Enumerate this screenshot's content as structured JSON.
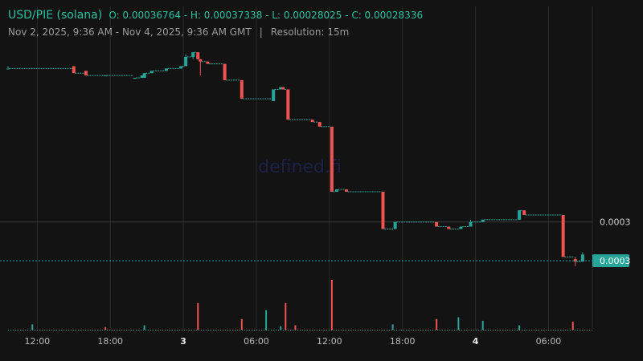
{
  "header": {
    "pair": "USD/PIE (solana)",
    "ohlc": "O: 0.00036764 - H: 0.00037338 - L: 0.00028025 - C: 0.00028336",
    "range": "Nov 2, 2025, 9:36 AM - Nov 4, 2025, 9:36 AM GMT",
    "separator": "|",
    "resolution": "Resolution: 15m"
  },
  "watermark": "defined.fi",
  "colors": {
    "up": "#26a69a",
    "down": "#ef5350",
    "background": "#131313",
    "grid": "#2a2a2a",
    "text": "#9a9a9a",
    "accent": "#25c3a2"
  },
  "chart_data": {
    "type": "candlestick",
    "x_ticks": [
      "12:00",
      "18:00",
      "3",
      "06:00",
      "12:00",
      "18:00",
      "4",
      "06:00"
    ],
    "x_tick_hours": [
      2.4,
      8.4,
      14.4,
      20.4,
      26.4,
      32.4,
      38.4,
      44.4
    ],
    "x_range_hours": [
      0,
      48
    ],
    "y_ticks": [
      0.0003
    ],
    "y_tick_labels": [
      "0.0003"
    ],
    "price_range": [
      0.00028025,
      0.00037338
    ],
    "current_price_label": "0.0003",
    "last_price": 0.00028336,
    "candles": [
      {
        "t": 0.0,
        "o": 0.000366,
        "h": 0.000367,
        "l": 0.000366,
        "c": 0.000366
      },
      {
        "t": 5.4,
        "o": 0.000367,
        "h": 0.000367,
        "l": 0.000364,
        "c": 0.000364
      },
      {
        "t": 6.4,
        "o": 0.000365,
        "h": 0.000365,
        "l": 0.000363,
        "c": 0.000363
      },
      {
        "t": 8.0,
        "o": 0.000363,
        "h": 0.000363,
        "l": 0.000363,
        "c": 0.000363
      },
      {
        "t": 10.4,
        "o": 0.000362,
        "h": 0.000362,
        "l": 0.000362,
        "c": 0.000362
      },
      {
        "t": 11.0,
        "o": 0.000362,
        "h": 0.000363,
        "l": 0.000362,
        "c": 0.000363
      },
      {
        "t": 11.2,
        "o": 0.000362,
        "h": 0.000364,
        "l": 0.000362,
        "c": 0.000364
      },
      {
        "t": 11.8,
        "o": 0.000364,
        "h": 0.000365,
        "l": 0.000364,
        "c": 0.000365
      },
      {
        "t": 13.0,
        "o": 0.000365,
        "h": 0.000366,
        "l": 0.000365,
        "c": 0.000366
      },
      {
        "t": 14.2,
        "o": 0.000366,
        "h": 0.000367,
        "l": 0.000366,
        "c": 0.000367
      },
      {
        "t": 14.6,
        "o": 0.000367,
        "h": 0.000372,
        "l": 0.000367,
        "c": 0.000371
      },
      {
        "t": 15.2,
        "o": 0.000371,
        "h": 0.000373,
        "l": 0.00037,
        "c": 0.000373
      },
      {
        "t": 15.6,
        "o": 0.000373,
        "h": 0.000373,
        "l": 0.00037,
        "c": 0.00037
      },
      {
        "t": 15.8,
        "o": 0.00037,
        "h": 0.00037,
        "l": 0.000363,
        "c": 0.000369
      },
      {
        "t": 16.4,
        "o": 0.000369,
        "h": 0.000369,
        "l": 0.000368,
        "c": 0.000368
      },
      {
        "t": 17.8,
        "o": 0.000368,
        "h": 0.000368,
        "l": 0.000361,
        "c": 0.000361
      },
      {
        "t": 19.2,
        "o": 0.000361,
        "h": 0.000361,
        "l": 0.000353,
        "c": 0.000353
      },
      {
        "t": 21.8,
        "o": 0.000352,
        "h": 0.000357,
        "l": 0.000352,
        "c": 0.000357
      },
      {
        "t": 22.4,
        "o": 0.000357,
        "h": 0.000358,
        "l": 0.000357,
        "c": 0.000358
      },
      {
        "t": 22.6,
        "o": 0.000358,
        "h": 0.000358,
        "l": 0.000357,
        "c": 0.000357
      },
      {
        "t": 23.0,
        "o": 0.000357,
        "h": 0.000357,
        "l": 0.000344,
        "c": 0.000344
      },
      {
        "t": 25.0,
        "o": 0.000344,
        "h": 0.000344,
        "l": 0.000343,
        "c": 0.000343
      },
      {
        "t": 25.6,
        "o": 0.000343,
        "h": 0.000343,
        "l": 0.000341,
        "c": 0.000341
      },
      {
        "t": 26.6,
        "o": 0.000341,
        "h": 0.000341,
        "l": 0.000313,
        "c": 0.000313
      },
      {
        "t": 27.0,
        "o": 0.000313,
        "h": 0.000314,
        "l": 0.000313,
        "c": 0.000314
      },
      {
        "t": 27.8,
        "o": 0.000314,
        "h": 0.000314,
        "l": 0.000313,
        "c": 0.000313
      },
      {
        "t": 30.8,
        "o": 0.000313,
        "h": 0.000313,
        "l": 0.000297,
        "c": 0.000297
      },
      {
        "t": 31.8,
        "o": 0.000297,
        "h": 0.0003,
        "l": 0.000297,
        "c": 0.0003
      },
      {
        "t": 35.2,
        "o": 0.0003,
        "h": 0.0003,
        "l": 0.000298,
        "c": 0.000298
      },
      {
        "t": 36.2,
        "o": 0.000298,
        "h": 0.000298,
        "l": 0.000297,
        "c": 0.000297
      },
      {
        "t": 37.2,
        "o": 0.000297,
        "h": 0.000298,
        "l": 0.000297,
        "c": 0.000298
      },
      {
        "t": 38.0,
        "o": 0.000298,
        "h": 0.000301,
        "l": 0.000298,
        "c": 0.0003
      },
      {
        "t": 39.0,
        "o": 0.0003,
        "h": 0.000301,
        "l": 0.0003,
        "c": 0.000301
      },
      {
        "t": 42.0,
        "o": 0.000301,
        "h": 0.000305,
        "l": 0.000301,
        "c": 0.000305
      },
      {
        "t": 42.4,
        "o": 0.000305,
        "h": 0.000305,
        "l": 0.000303,
        "c": 0.000303
      },
      {
        "t": 45.6,
        "o": 0.000303,
        "h": 0.000303,
        "l": 0.000285,
        "c": 0.000285
      },
      {
        "t": 46.6,
        "o": 0.000284,
        "h": 0.000285,
        "l": 0.000281,
        "c": 0.000283
      },
      {
        "t": 47.2,
        "o": 0.000283,
        "h": 0.000287,
        "l": 0.000283,
        "c": 0.000286
      }
    ],
    "volume": [
      {
        "t": 2.0,
        "v": 6,
        "up": true
      },
      {
        "t": 8.0,
        "v": 3,
        "up": false
      },
      {
        "t": 11.2,
        "v": 5,
        "up": true
      },
      {
        "t": 15.6,
        "v": 30,
        "up": false
      },
      {
        "t": 19.2,
        "v": 12,
        "up": false
      },
      {
        "t": 21.2,
        "v": 22,
        "up": true
      },
      {
        "t": 22.4,
        "v": 4,
        "up": true
      },
      {
        "t": 22.8,
        "v": 30,
        "up": false
      },
      {
        "t": 23.6,
        "v": 5,
        "up": false
      },
      {
        "t": 26.6,
        "v": 56,
        "up": false
      },
      {
        "t": 31.6,
        "v": 6,
        "up": true
      },
      {
        "t": 35.2,
        "v": 12,
        "up": false
      },
      {
        "t": 37.0,
        "v": 14,
        "up": true
      },
      {
        "t": 39.0,
        "v": 10,
        "up": true
      },
      {
        "t": 42.0,
        "v": 5,
        "up": true
      },
      {
        "t": 46.4,
        "v": 9,
        "up": false
      }
    ]
  }
}
